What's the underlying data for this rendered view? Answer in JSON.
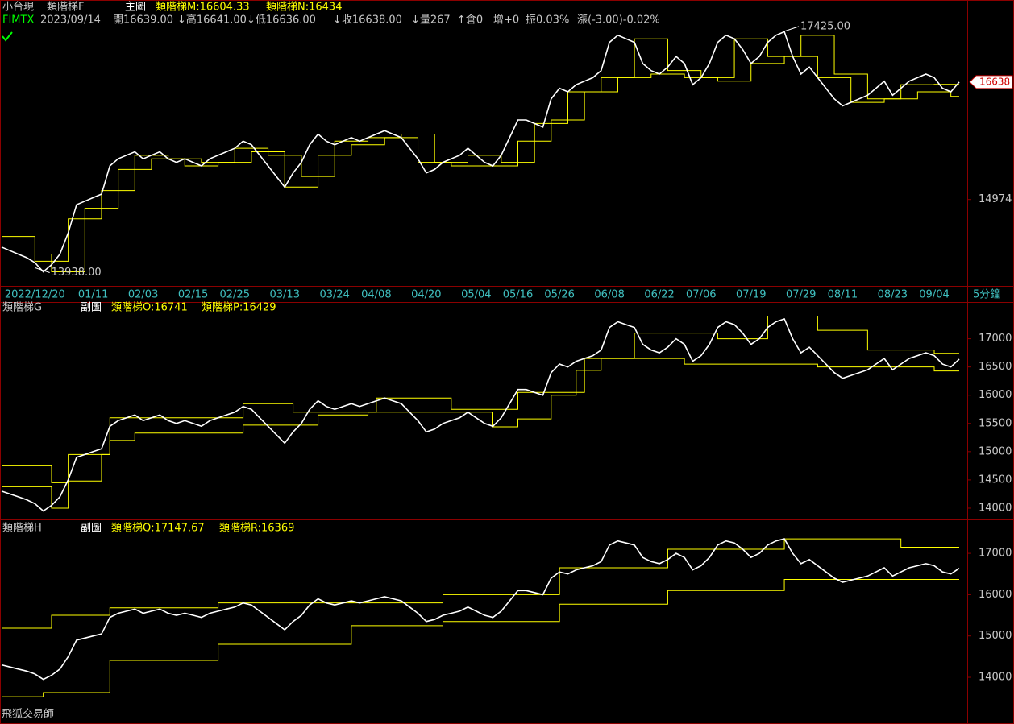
{
  "header": {
    "symbol": "小台現",
    "code": "FIMTX",
    "date": "2023/09/14",
    "open": "開16639.00",
    "high": "↓高16641.00",
    "low": "↓低16636.00",
    "close": "↓收16638.00",
    "volume": "↓量267",
    "open_interest": "↑倉0",
    "oi_change": "增+0",
    "amplitude": "振0.03%",
    "change": "漲(-3.00)-0.02%",
    "footer": "飛狐交易師"
  },
  "chart_data": [
    {
      "type": "line",
      "title": "類階梯F",
      "subtitle": "主圖",
      "x_unit": "5分鐘",
      "categories": [
        null,
        null,
        null,
        null,
        "2022/12/20",
        null,
        null,
        null,
        null,
        null,
        null,
        "01/11",
        null,
        null,
        null,
        null,
        null,
        "02/03",
        null,
        null,
        null,
        null,
        null,
        "02/15",
        null,
        null,
        null,
        null,
        "02/25",
        null,
        null,
        null,
        null,
        null,
        "03/13",
        null,
        null,
        null,
        null,
        null,
        "03/24",
        null,
        null,
        null,
        null,
        "04/08",
        null,
        null,
        null,
        null,
        null,
        "04/20",
        null,
        null,
        null,
        null,
        null,
        "05/04",
        null,
        null,
        null,
        null,
        "05/16",
        null,
        null,
        null,
        null,
        "05/26",
        null,
        null,
        null,
        null,
        null,
        "06/08",
        null,
        null,
        null,
        null,
        null,
        "06/22",
        null,
        null,
        null,
        null,
        "07/06",
        null,
        null,
        null,
        null,
        null,
        "07/19",
        null,
        null,
        null,
        null,
        null,
        "07/29",
        null,
        null,
        null,
        null,
        "08/11",
        null,
        null,
        null,
        null,
        null,
        "08/23",
        null,
        null,
        null,
        null,
        "09/04",
        null,
        null,
        null
      ],
      "series": [
        {
          "color": "#ffffff",
          "values": [
            14300,
            14250,
            14200,
            14150,
            14080,
            13950,
            14050,
            14200,
            14500,
            14900,
            14950,
            15000,
            15050,
            15450,
            15550,
            15600,
            15650,
            15550,
            15600,
            15650,
            15550,
            15500,
            15550,
            15500,
            15450,
            15550,
            15600,
            15650,
            15700,
            15800,
            15750,
            15600,
            15450,
            15300,
            15150,
            15350,
            15500,
            15750,
            15900,
            15800,
            15750,
            15800,
            15850,
            15800,
            15850,
            15900,
            15950,
            15900,
            15850,
            15700,
            15550,
            15350,
            15400,
            15500,
            15550,
            15600,
            15700,
            15600,
            15500,
            15450,
            15600,
            15850,
            16100,
            16100,
            16050,
            16000,
            16400,
            16550,
            16500,
            16600,
            16650,
            16700,
            16800,
            17200,
            17300,
            17250,
            17200,
            16900,
            16800,
            16750,
            16850,
            17000,
            16900,
            16600,
            16700,
            16900,
            17200,
            17300,
            17250,
            17100,
            16900,
            17000,
            17200,
            17300,
            17350,
            17000,
            16750,
            16850,
            16700,
            16550,
            16400,
            16300,
            16350,
            16400,
            16450,
            16550,
            16650,
            16450,
            16550,
            16650,
            16700,
            16750,
            16700,
            16550,
            16500,
            16638
          ]
        },
        {
          "name": "類階梯M:16604.33",
          "color": "#ffff00",
          "x": [
            0,
            4,
            8,
            12,
            16,
            20,
            24,
            28,
            32,
            36,
            40,
            44,
            48,
            52,
            56,
            60,
            64,
            68,
            72,
            76,
            80,
            84,
            88,
            92,
            96,
            100,
            104,
            108,
            112
          ],
          "values": [
            14450,
            14100,
            14700,
            15100,
            15600,
            15550,
            15500,
            15700,
            15600,
            15300,
            15800,
            15850,
            15900,
            15500,
            15600,
            15500,
            16050,
            16500,
            16700,
            17250,
            16800,
            16700,
            17250,
            17000,
            17300,
            16750,
            16400,
            16600,
            16604.33
          ]
        },
        {
          "name": "類階梯N:16434",
          "color": "#ffff00",
          "x": [
            2,
            6,
            10,
            14,
            18,
            22,
            26,
            30,
            34,
            38,
            42,
            46,
            50,
            54,
            58,
            62,
            66,
            70,
            74,
            78,
            82,
            86,
            90,
            94,
            98,
            102,
            106,
            110,
            114
          ],
          "values": [
            14200,
            13950,
            14850,
            15400,
            15550,
            15450,
            15500,
            15650,
            15150,
            15600,
            15750,
            15850,
            15500,
            15450,
            15450,
            15800,
            16100,
            16500,
            16700,
            16750,
            16700,
            16650,
            16900,
            17000,
            16700,
            16350,
            16400,
            16500,
            16434
          ]
        }
      ],
      "ylim": [
        13750,
        17800
      ],
      "yticks": [
        14974
      ],
      "high": {
        "value": 17425,
        "label": "17425.00"
      },
      "low": {
        "value": 13938,
        "label": "13938.00"
      },
      "last": {
        "value": 16638,
        "label": "16638"
      }
    },
    {
      "type": "line",
      "title": "類階梯G",
      "subtitle": "副圖",
      "series": [
        {
          "name": "類階梯O:16741",
          "color": "#ffff00",
          "x": [
            0,
            6,
            8,
            13,
            29,
            35,
            45,
            54,
            62,
            70,
            76,
            86,
            92,
            98,
            104,
            112
          ],
          "values": [
            14750,
            14450,
            14950,
            15600,
            15850,
            15700,
            15950,
            15750,
            16050,
            16650,
            17100,
            17000,
            17400,
            17150,
            16800,
            16741
          ]
        },
        {
          "name": "類階梯P:16429",
          "color": "#ffff00",
          "x": [
            0,
            6,
            8,
            12,
            13,
            16,
            29,
            38,
            44,
            59,
            62,
            66,
            69,
            72,
            82,
            98,
            112
          ],
          "values": [
            14380,
            14000,
            14480,
            14950,
            15200,
            15330,
            15470,
            15650,
            15700,
            15440,
            15580,
            16000,
            16440,
            16650,
            16550,
            16500,
            16429
          ]
        }
      ],
      "ylim": [
        13800,
        17650
      ],
      "yticks": [
        14000,
        14500,
        15000,
        15500,
        16000,
        16500,
        17000
      ]
    },
    {
      "type": "line",
      "title": "類階梯H",
      "subtitle": "副圖",
      "series": [
        {
          "name": "類階梯Q:17147.67",
          "color": "#ffff00",
          "x": [
            0,
            6,
            13,
            26,
            42,
            53,
            67,
            80,
            94,
            108
          ],
          "values": [
            15190,
            15500,
            15680,
            15800,
            15800,
            16000,
            16650,
            17100,
            17350,
            17147.67
          ]
        },
        {
          "name": "類階梯R:16369",
          "color": "#ffff00",
          "x": [
            0,
            5,
            13,
            26,
            42,
            53,
            67,
            80,
            94
          ],
          "values": [
            13530,
            13630,
            14410,
            14800,
            15250,
            15350,
            15770,
            16100,
            16369
          ]
        }
      ],
      "ylim": [
        12870,
        17820
      ],
      "yticks": [
        14000,
        15000,
        16000,
        17000
      ]
    }
  ]
}
